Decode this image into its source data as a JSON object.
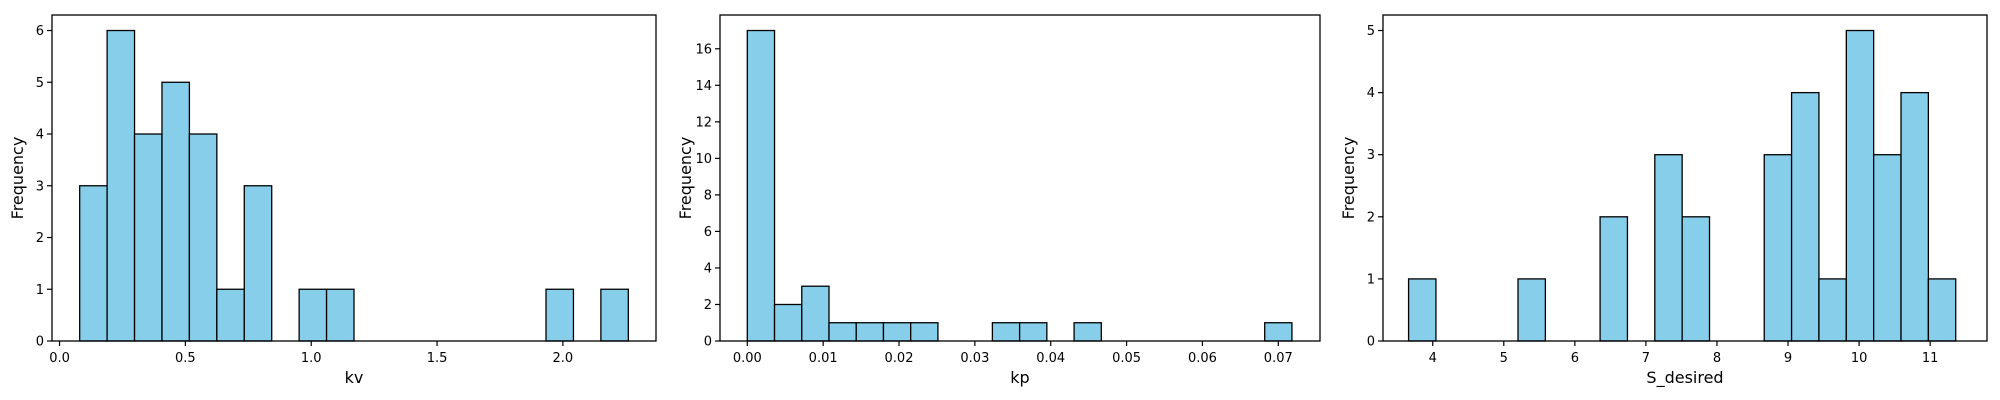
{
  "colors": {
    "bar_fill": "#87ceeb",
    "bar_edge": "#000000",
    "background": "#ffffff"
  },
  "chart_data": [
    {
      "type": "bar",
      "subtype": "histogram",
      "xlabel": "kv",
      "ylabel": "Frequency",
      "xlim": [
        -0.03,
        2.37
      ],
      "ylim": [
        0,
        6.3
      ],
      "xticks": [
        0.0,
        0.5,
        1.0,
        1.5,
        2.0
      ],
      "xtick_labels": [
        "0.0",
        "0.5",
        "1.0",
        "1.5",
        "2.0"
      ],
      "yticks": [
        0,
        1,
        2,
        3,
        4,
        5,
        6
      ],
      "ytick_labels": [
        "0",
        "1",
        "2",
        "3",
        "4",
        "5",
        "6"
      ],
      "bin_start": 0.08,
      "bin_width": 0.109,
      "values": [
        3,
        6,
        4,
        5,
        4,
        1,
        3,
        0,
        1,
        1,
        0,
        0,
        0,
        0,
        0,
        0,
        0,
        1,
        0,
        1
      ],
      "grid": false
    },
    {
      "type": "bar",
      "subtype": "histogram",
      "xlabel": "kp",
      "ylabel": "Frequency",
      "xlim": [
        -0.0036,
        0.0755
      ],
      "ylim": [
        0,
        17.85
      ],
      "xticks": [
        0.0,
        0.01,
        0.02,
        0.03,
        0.04,
        0.05,
        0.06,
        0.07
      ],
      "xtick_labels": [
        "0.00",
        "0.01",
        "0.02",
        "0.03",
        "0.04",
        "0.05",
        "0.06",
        "0.07"
      ],
      "yticks": [
        0,
        2,
        4,
        6,
        8,
        10,
        12,
        14,
        16
      ],
      "ytick_labels": [
        "0",
        "2",
        "4",
        "6",
        "8",
        "10",
        "12",
        "14",
        "16"
      ],
      "bin_start": 0.0,
      "bin_width": 0.00359,
      "values": [
        17,
        2,
        3,
        1,
        1,
        1,
        1,
        0,
        0,
        1,
        1,
        0,
        1,
        0,
        0,
        0,
        0,
        0,
        0,
        1
      ],
      "grid": false
    },
    {
      "type": "bar",
      "subtype": "histogram",
      "xlabel": "S_desired",
      "ylabel": "Frequency",
      "xlim": [
        3.3,
        11.8
      ],
      "ylim": [
        0,
        5.25
      ],
      "xticks": [
        4,
        5,
        6,
        7,
        8,
        9,
        10,
        11
      ],
      "xtick_labels": [
        "4",
        "5",
        "6",
        "7",
        "8",
        "9",
        "10",
        "11"
      ],
      "yticks": [
        0,
        1,
        2,
        3,
        4,
        5
      ],
      "ytick_labels": [
        "0",
        "1",
        "2",
        "3",
        "4",
        "5"
      ],
      "bin_start": 3.66,
      "bin_width": 0.385,
      "values": [
        1,
        0,
        0,
        0,
        1,
        0,
        0,
        2,
        0,
        3,
        2,
        0,
        0,
        3,
        4,
        1,
        5,
        3,
        4,
        1
      ],
      "grid": false
    }
  ]
}
